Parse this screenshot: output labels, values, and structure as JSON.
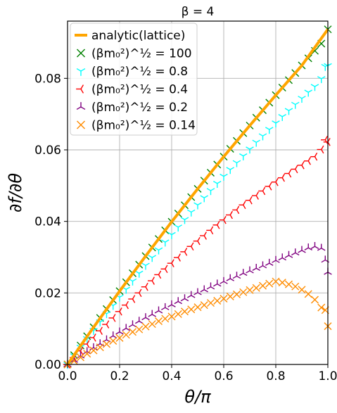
{
  "chart_data": {
    "type": "scatter",
    "title": "β = 4",
    "xlabel": "θ/π",
    "ylabel": "∂f/∂θ",
    "xlim": [
      0.0,
      1.0
    ],
    "ylim": [
      0.0,
      0.096
    ],
    "xticks": [
      "0.0",
      "0.2",
      "0.4",
      "0.6",
      "0.8",
      "1.0"
    ],
    "xtick_values": [
      0.0,
      0.2,
      0.4,
      0.6,
      0.8,
      1.0
    ],
    "yticks": [
      "0.00",
      "0.02",
      "0.04",
      "0.06",
      "0.08"
    ],
    "ytick_values": [
      0.0,
      0.02,
      0.04,
      0.06,
      0.08
    ],
    "grid": true,
    "legend_position": "upper-left",
    "colors": {
      "analytic": "#ffa500",
      "m100": "#008000",
      "m08": "#00ffff",
      "m04": "#ff0000",
      "m02": "#800080",
      "m014": "#ff8c00"
    },
    "series": [
      {
        "name": "analytic(lattice)",
        "kind": "line",
        "color_key": "analytic",
        "x": [
          0.0,
          0.1,
          0.2,
          0.3,
          0.4,
          0.5,
          0.6,
          0.7,
          0.8,
          0.9,
          1.0
        ],
        "y": [
          0.0,
          0.0104,
          0.0205,
          0.0303,
          0.0399,
          0.0491,
          0.0581,
          0.0668,
          0.0753,
          0.0836,
          0.0937
        ]
      },
      {
        "name": "(βm₀²)^½ = 100",
        "kind": "marker",
        "marker": "x",
        "color_key": "m100",
        "x": [
          0.0,
          0.025,
          0.05,
          0.075,
          0.1,
          0.125,
          0.15,
          0.175,
          0.2,
          0.225,
          0.25,
          0.275,
          0.3,
          0.325,
          0.35,
          0.375,
          0.4,
          0.425,
          0.45,
          0.475,
          0.5,
          0.525,
          0.55,
          0.575,
          0.6,
          0.625,
          0.65,
          0.675,
          0.7,
          0.725,
          0.75,
          0.775,
          0.8,
          0.825,
          0.85,
          0.875,
          0.9,
          0.925,
          0.95,
          0.975,
          1.0
        ],
        "y": [
          0.0,
          0.0026,
          0.0053,
          0.0079,
          0.0104,
          0.013,
          0.0155,
          0.018,
          0.0205,
          0.023,
          0.0255,
          0.0279,
          0.0303,
          0.0327,
          0.0351,
          0.0375,
          0.0399,
          0.0422,
          0.0445,
          0.0468,
          0.0491,
          0.0514,
          0.0536,
          0.0559,
          0.0581,
          0.0603,
          0.0625,
          0.0647,
          0.0668,
          0.069,
          0.0711,
          0.0732,
          0.0753,
          0.0774,
          0.0795,
          0.0815,
          0.0836,
          0.0856,
          0.0877,
          0.0897,
          0.0937
        ]
      },
      {
        "name": "(βm₀²)^½ = 0.8",
        "kind": "marker",
        "marker": "tri_down",
        "color_key": "m08",
        "x": [
          0.0,
          0.025,
          0.05,
          0.075,
          0.1,
          0.125,
          0.15,
          0.175,
          0.2,
          0.225,
          0.25,
          0.275,
          0.3,
          0.325,
          0.35,
          0.375,
          0.4,
          0.425,
          0.45,
          0.475,
          0.5,
          0.525,
          0.55,
          0.575,
          0.6,
          0.625,
          0.65,
          0.675,
          0.7,
          0.725,
          0.75,
          0.775,
          0.8,
          0.825,
          0.85,
          0.875,
          0.9,
          0.925,
          0.95,
          0.975,
          0.99,
          1.0
        ],
        "y": [
          0.0,
          0.0024,
          0.0048,
          0.0072,
          0.0095,
          0.0119,
          0.0142,
          0.0165,
          0.0188,
          0.021,
          0.0233,
          0.0255,
          0.0277,
          0.0299,
          0.032,
          0.0342,
          0.0363,
          0.0384,
          0.0405,
          0.0426,
          0.0446,
          0.0466,
          0.0486,
          0.0506,
          0.0526,
          0.0545,
          0.0564,
          0.0583,
          0.0602,
          0.0621,
          0.0639,
          0.0657,
          0.0675,
          0.0693,
          0.071,
          0.0727,
          0.0744,
          0.0761,
          0.0777,
          0.0799,
          0.0833,
          0.0835
        ]
      },
      {
        "name": "(βm₀²)^½ = 0.4",
        "kind": "marker",
        "marker": "tri_left",
        "color_key": "m04",
        "x": [
          0.0,
          0.025,
          0.05,
          0.075,
          0.1,
          0.125,
          0.15,
          0.175,
          0.2,
          0.225,
          0.25,
          0.275,
          0.3,
          0.325,
          0.35,
          0.375,
          0.4,
          0.425,
          0.45,
          0.475,
          0.5,
          0.525,
          0.55,
          0.575,
          0.6,
          0.625,
          0.65,
          0.675,
          0.7,
          0.725,
          0.75,
          0.775,
          0.8,
          0.825,
          0.85,
          0.875,
          0.9,
          0.925,
          0.95,
          0.975,
          0.99,
          1.0
        ],
        "y": [
          0.0,
          0.0019,
          0.0038,
          0.0057,
          0.0075,
          0.0094,
          0.0112,
          0.013,
          0.0148,
          0.0166,
          0.0183,
          0.02,
          0.0217,
          0.0234,
          0.0251,
          0.0267,
          0.0283,
          0.0299,
          0.0315,
          0.033,
          0.0345,
          0.036,
          0.0375,
          0.039,
          0.0404,
          0.0418,
          0.0432,
          0.0446,
          0.0459,
          0.0472,
          0.0485,
          0.0498,
          0.051,
          0.0522,
          0.0534,
          0.0546,
          0.0557,
          0.0569,
          0.0581,
          0.0601,
          0.0628,
          0.0622
        ]
      },
      {
        "name": "(βm₀²)^½ = 0.2",
        "kind": "marker",
        "marker": "tri_up",
        "color_key": "m02",
        "x": [
          0.0,
          0.025,
          0.05,
          0.075,
          0.1,
          0.125,
          0.15,
          0.175,
          0.2,
          0.225,
          0.25,
          0.275,
          0.3,
          0.325,
          0.35,
          0.375,
          0.4,
          0.425,
          0.45,
          0.475,
          0.5,
          0.525,
          0.55,
          0.575,
          0.6,
          0.625,
          0.65,
          0.675,
          0.7,
          0.725,
          0.75,
          0.775,
          0.8,
          0.825,
          0.85,
          0.875,
          0.9,
          0.925,
          0.95,
          0.975,
          0.99,
          1.0
        ],
        "y": [
          0.0,
          0.0012,
          0.0024,
          0.0036,
          0.0047,
          0.0058,
          0.0069,
          0.008,
          0.0091,
          0.0101,
          0.0111,
          0.0121,
          0.0131,
          0.014,
          0.015,
          0.0159,
          0.0167,
          0.0176,
          0.0184,
          0.0193,
          0.0201,
          0.0209,
          0.0217,
          0.0225,
          0.0232,
          0.024,
          0.0247,
          0.0255,
          0.0262,
          0.0269,
          0.0276,
          0.0283,
          0.0291,
          0.0298,
          0.0305,
          0.0312,
          0.0319,
          0.0326,
          0.033,
          0.0325,
          0.0292,
          0.0258
        ]
      },
      {
        "name": "(βm₀²)^½ = 0.14",
        "kind": "marker",
        "marker": "x",
        "color_key": "m014",
        "x": [
          0.0,
          0.025,
          0.05,
          0.075,
          0.1,
          0.125,
          0.15,
          0.175,
          0.2,
          0.225,
          0.25,
          0.275,
          0.3,
          0.325,
          0.35,
          0.375,
          0.4,
          0.425,
          0.45,
          0.475,
          0.5,
          0.525,
          0.55,
          0.575,
          0.6,
          0.625,
          0.65,
          0.675,
          0.7,
          0.725,
          0.75,
          0.775,
          0.8,
          0.825,
          0.85,
          0.875,
          0.9,
          0.925,
          0.95,
          0.975,
          0.99,
          1.0
        ],
        "y": [
          0.0,
          0.001,
          0.002,
          0.003,
          0.0039,
          0.0048,
          0.0057,
          0.0066,
          0.0074,
          0.0083,
          0.0091,
          0.0098,
          0.0106,
          0.0113,
          0.0121,
          0.0128,
          0.0134,
          0.0141,
          0.0148,
          0.0154,
          0.016,
          0.0166,
          0.0172,
          0.0178,
          0.0184,
          0.019,
          0.0196,
          0.0202,
          0.0208,
          0.0214,
          0.022,
          0.0226,
          0.0232,
          0.0229,
          0.0224,
          0.0218,
          0.0209,
          0.0197,
          0.0181,
          0.0159,
          0.0152,
          0.0107
        ]
      }
    ]
  }
}
